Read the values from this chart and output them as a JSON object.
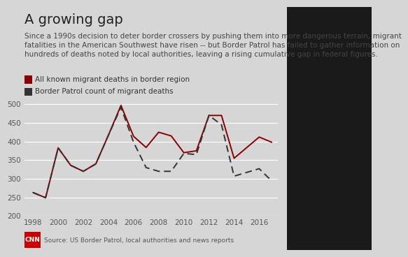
{
  "title": "A growing gap",
  "subtitle": "Since a 1990s decision to deter border crossers by pushing them into more dangerous terrain, migrant\nfatalities in the American Southwest have risen -- but Border Patrol has failed to gather information on\nhundreds of deaths noted by local authorities, leaving a rising cumulative gap in federal figures.",
  "source": "Source: US Border Patrol, local authorities and news reports",
  "legend1": "All known migrant deaths in border region",
  "legend2": "Border Patrol count of migrant deaths",
  "years": [
    1998,
    1999,
    2000,
    2001,
    2002,
    2003,
    2004,
    2005,
    2006,
    2007,
    2008,
    2009,
    2010,
    2011,
    2012,
    2013,
    2014,
    2016,
    2017
  ],
  "all_known": [
    263,
    249,
    383,
    336,
    320,
    340,
    417,
    497,
    414,
    384,
    425,
    415,
    370,
    375,
    470,
    470,
    355,
    412,
    398
  ],
  "border_patrol": [
    263,
    249,
    383,
    336,
    320,
    340,
    417,
    492,
    398,
    330,
    320,
    320,
    368,
    365,
    470,
    445,
    307,
    327,
    294
  ],
  "ylim": [
    200,
    510
  ],
  "yticks": [
    200,
    250,
    300,
    350,
    400,
    450,
    500
  ],
  "xticks": [
    1998,
    2000,
    2002,
    2004,
    2006,
    2008,
    2010,
    2012,
    2014,
    2016
  ],
  "bg_color": "#d6d6d6",
  "plot_bg": "#d6d6d6",
  "line1_color": "#8b0000",
  "line2_color": "#333333",
  "title_fontsize": 14,
  "subtitle_fontsize": 7.5,
  "tick_fontsize": 7.5,
  "legend_fontsize": 7.5,
  "cnn_color": "#cc0000",
  "right_panel_color": "#1a1a1a"
}
